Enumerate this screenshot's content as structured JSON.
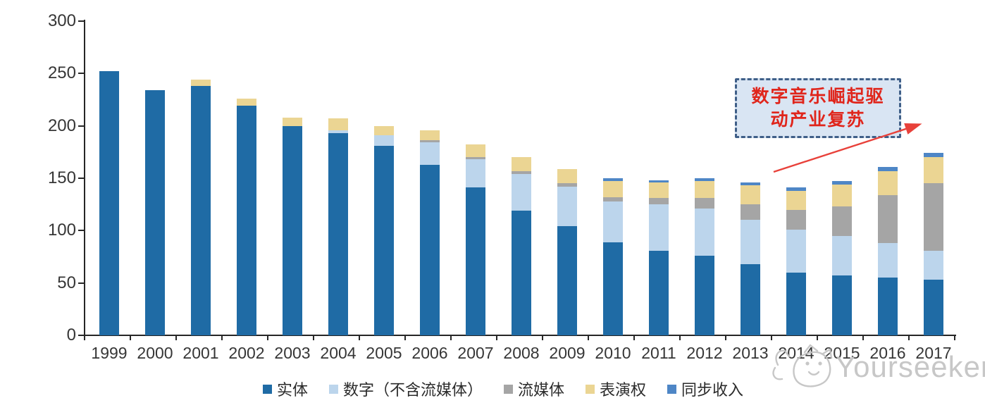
{
  "watermark": {
    "brand": "Yourseeker",
    "logo_icon": "cat-face-icon"
  },
  "annotation": {
    "line1": "数字音乐崛起驱",
    "line2": "动产业复苏",
    "text_color": "#e0251b",
    "box_fill": "#d9e5f3",
    "border_color": "#3f5f88",
    "arrow_color": "#e8413a"
  },
  "chart_data": {
    "type": "bar",
    "stacked": true,
    "title": "",
    "xlabel": "",
    "ylabel": "",
    "ylim": [
      0,
      300
    ],
    "yticks": [
      0,
      50,
      100,
      150,
      200,
      250,
      300
    ],
    "grid": false,
    "legend_position": "bottom",
    "categories": [
      "1999",
      "2000",
      "2001",
      "2002",
      "2003",
      "2004",
      "2005",
      "2006",
      "2007",
      "2008",
      "2009",
      "2010",
      "2011",
      "2012",
      "2013",
      "2014",
      "2015",
      "2016",
      "2017"
    ],
    "series": [
      {
        "name": "实体",
        "color": "#1f6ba5",
        "values": [
          252,
          234,
          238,
          219,
          200,
          193,
          181,
          163,
          141,
          119,
          104,
          89,
          81,
          76,
          68,
          60,
          57,
          55,
          53
        ]
      },
      {
        "name": "数字（不含流媒体）",
        "color": "#bcd5ec",
        "values": [
          0,
          0,
          0,
          0,
          0,
          3,
          10,
          21,
          27,
          35,
          38,
          39,
          44,
          45,
          42,
          41,
          38,
          33,
          28
        ]
      },
      {
        "name": "流媒体",
        "color": "#a5a5a5",
        "values": [
          0,
          0,
          0,
          0,
          0,
          0,
          0,
          2,
          2,
          3,
          3,
          4,
          6,
          10,
          15,
          19,
          28,
          46,
          64
        ]
      },
      {
        "name": "表演权",
        "color": "#ebd593",
        "values": [
          0,
          0,
          6,
          7,
          8,
          11,
          9,
          10,
          12,
          13,
          14,
          15,
          15,
          16,
          18,
          18,
          21,
          23,
          25
        ]
      },
      {
        "name": "同步收入",
        "color": "#4e86c6",
        "values": [
          0,
          0,
          0,
          0,
          0,
          0,
          0,
          0,
          0,
          0,
          0,
          3,
          2,
          3,
          3,
          3,
          3,
          4,
          4
        ]
      }
    ]
  }
}
